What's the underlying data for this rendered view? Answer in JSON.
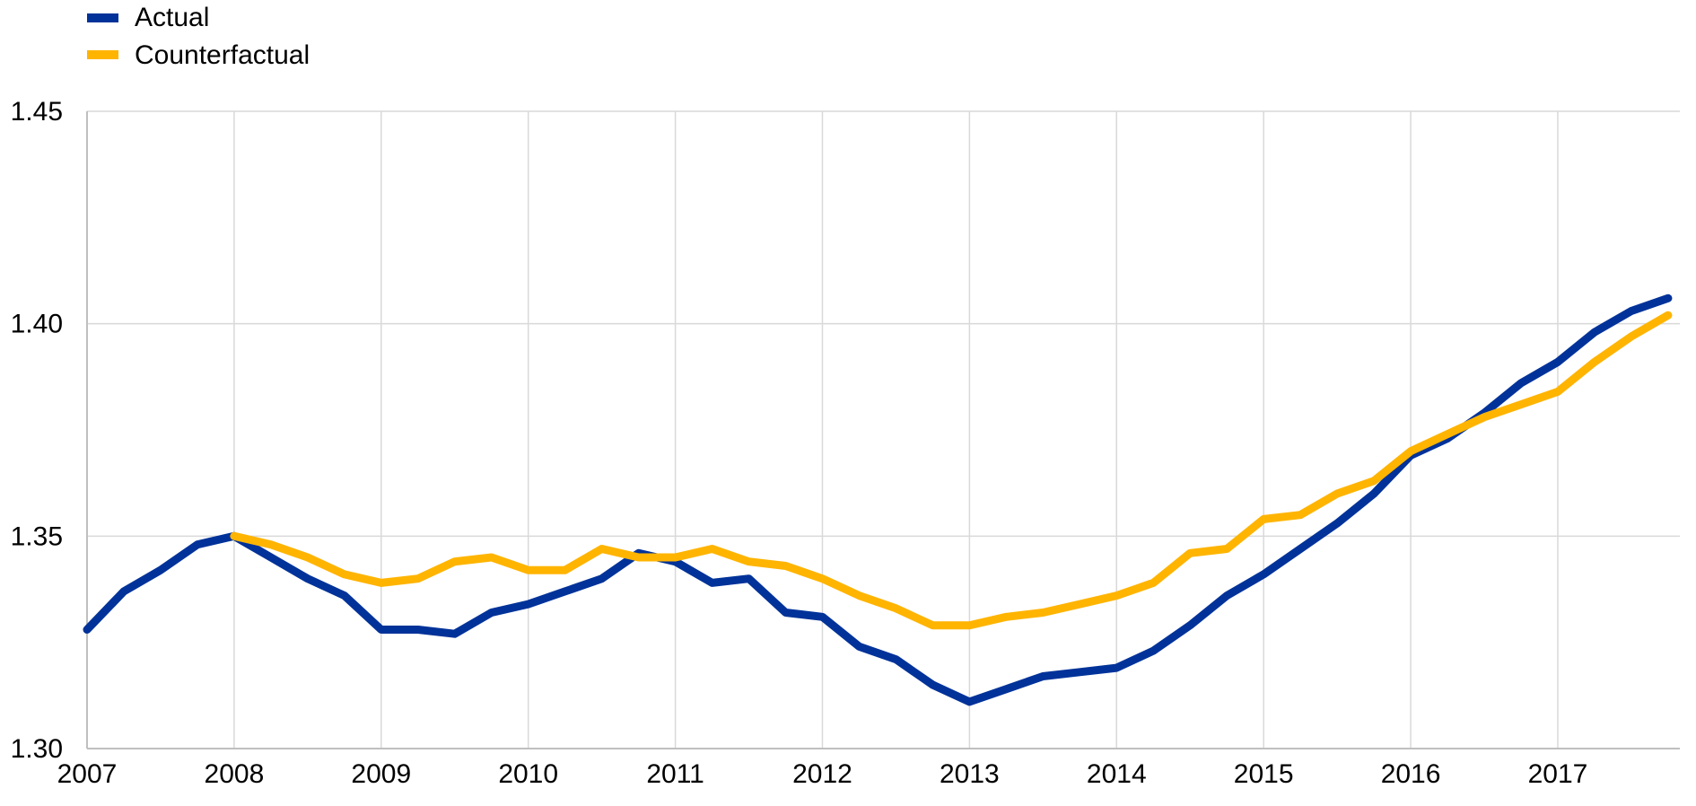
{
  "chart_data": {
    "type": "line",
    "title": "",
    "xlabel": "",
    "ylabel": "",
    "x_ticks": [
      "2007",
      "2008",
      "2009",
      "2010",
      "2011",
      "2012",
      "2013",
      "2014",
      "2015",
      "2016",
      "2017"
    ],
    "y_ticks": [
      "1.30",
      "1.35",
      "1.40",
      "1.45"
    ],
    "ylim": [
      1.3,
      1.45
    ],
    "xlim": [
      2007.0,
      2017.83
    ],
    "grid": true,
    "legend_position": "top-left",
    "series": [
      {
        "name": "Actual",
        "color": "#003299",
        "x": [
          2007.0,
          2007.25,
          2007.5,
          2007.75,
          2008.0,
          2008.25,
          2008.5,
          2008.75,
          2009.0,
          2009.25,
          2009.5,
          2009.75,
          2010.0,
          2010.25,
          2010.5,
          2010.75,
          2011.0,
          2011.25,
          2011.5,
          2011.75,
          2012.0,
          2012.25,
          2012.5,
          2012.75,
          2013.0,
          2013.25,
          2013.5,
          2013.75,
          2014.0,
          2014.25,
          2014.5,
          2014.75,
          2015.0,
          2015.25,
          2015.5,
          2015.75,
          2016.0,
          2016.25,
          2016.5,
          2016.75,
          2017.0,
          2017.25,
          2017.5,
          2017.75
        ],
        "values": [
          1.328,
          1.337,
          1.342,
          1.348,
          1.35,
          1.345,
          1.34,
          1.336,
          1.328,
          1.328,
          1.327,
          1.332,
          1.334,
          1.337,
          1.34,
          1.346,
          1.344,
          1.339,
          1.34,
          1.332,
          1.331,
          1.324,
          1.321,
          1.315,
          1.311,
          1.314,
          1.317,
          1.318,
          1.319,
          1.323,
          1.329,
          1.336,
          1.341,
          1.347,
          1.353,
          1.36,
          1.369,
          1.373,
          1.379,
          1.386,
          1.391,
          1.398,
          1.403,
          1.406
        ]
      },
      {
        "name": "Counterfactual",
        "color": "#FFB400",
        "x": [
          2008.0,
          2008.25,
          2008.5,
          2008.75,
          2009.0,
          2009.25,
          2009.5,
          2009.75,
          2010.0,
          2010.25,
          2010.5,
          2010.75,
          2011.0,
          2011.25,
          2011.5,
          2011.75,
          2012.0,
          2012.25,
          2012.5,
          2012.75,
          2013.0,
          2013.25,
          2013.5,
          2013.75,
          2014.0,
          2014.25,
          2014.5,
          2014.75,
          2015.0,
          2015.25,
          2015.5,
          2015.75,
          2016.0,
          2016.25,
          2016.5,
          2016.75,
          2017.0,
          2017.25,
          2017.5,
          2017.75
        ],
        "values": [
          1.35,
          1.348,
          1.345,
          1.341,
          1.339,
          1.34,
          1.344,
          1.345,
          1.342,
          1.342,
          1.347,
          1.345,
          1.345,
          1.347,
          1.344,
          1.343,
          1.34,
          1.336,
          1.333,
          1.329,
          1.329,
          1.331,
          1.332,
          1.334,
          1.336,
          1.339,
          1.346,
          1.347,
          1.354,
          1.355,
          1.36,
          1.363,
          1.37,
          1.374,
          1.378,
          1.381,
          1.384,
          1.391,
          1.397,
          1.402
        ]
      }
    ]
  }
}
